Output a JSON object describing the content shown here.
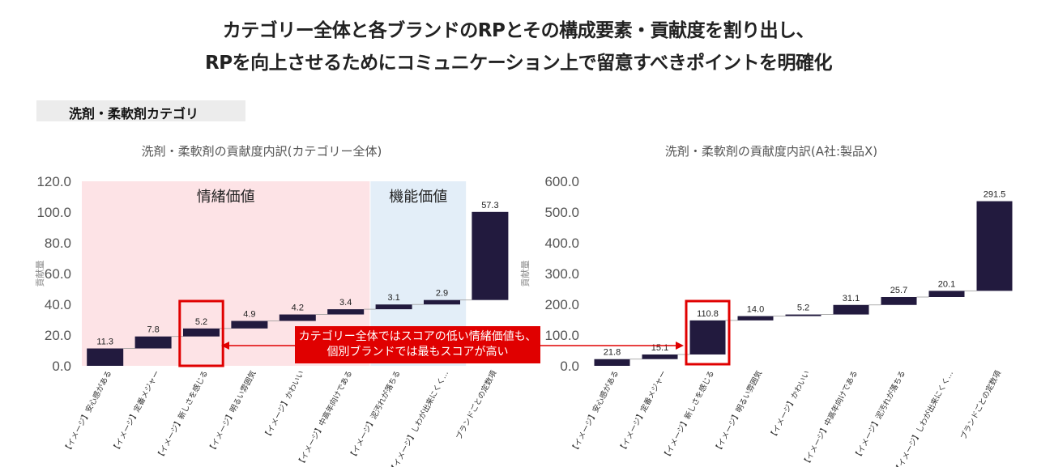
{
  "header": {
    "line1": "カテゴリー全体と各ブランドのRPとその構成要素・貢献度を割り出し、",
    "line2": "RPを向上させるためにコミュニケーション上で留意すべきポイントを明確化"
  },
  "section_label": "洗剤・柔軟剤カテゴリ",
  "callout": {
    "line1": "カテゴリー全体ではスコアの低い情緒価値も、",
    "line2": "個別ブランドでは最もスコアが高い"
  },
  "colors": {
    "bar": "#221a3e",
    "highlight": "#e00000",
    "emotional_bg": "#fde3e6",
    "functional_bg": "#e3eef8"
  },
  "chart_data": [
    {
      "type": "waterfall",
      "title": "洗剤・柔軟剤の貢献度内訳(カテゴリー全体)",
      "ylabel": "貢献量",
      "ylim": [
        0,
        120
      ],
      "yticks": [
        "0.0",
        "20.0",
        "40.0",
        "60.0",
        "80.0",
        "100.0",
        "120.0"
      ],
      "categories": [
        "【イメージ】安心感がある",
        "【イメージ】定番メジャー",
        "【イメージ】新しさを感じる",
        "【イメージ】明るい雰囲気",
        "【イメージ】かわいい",
        "【イメージ】中高年向けである",
        "【イメージ】泥汚れが落ちる",
        "【イメージ】しわが出来にくく…",
        "ブランドごとの定数項"
      ],
      "values": [
        11.3,
        7.8,
        5.2,
        4.9,
        4.2,
        3.4,
        3.1,
        2.9,
        57.3
      ],
      "value_labels": [
        "11.3",
        "7.8",
        "5.2",
        "4.9",
        "4.2",
        "3.4",
        "3.1",
        "2.9",
        "57.3"
      ],
      "regions": [
        {
          "label": "情緒価値",
          "from": 0,
          "to": 5
        },
        {
          "label": "機能価値",
          "from": 6,
          "to": 7
        }
      ],
      "highlight_index": 2
    },
    {
      "type": "waterfall",
      "title": "洗剤・柔軟剤の貢献度内訳(A社:製品X)",
      "ylabel": "貢献量",
      "ylim": [
        0,
        600
      ],
      "yticks": [
        "0.0",
        "100.0",
        "200.0",
        "300.0",
        "400.0",
        "500.0",
        "600.0"
      ],
      "categories": [
        "【イメージ】安心感がある",
        "【イメージ】定番メジャー",
        "【イメージ】新しさを感じる",
        "【イメージ】明るい雰囲気",
        "【イメージ】かわいい",
        "【イメージ】中高年向けである",
        "【イメージ】泥汚れが落ちる",
        "【イメージ】しわが出来にくく…",
        "ブランドごとの定数項"
      ],
      "values": [
        21.8,
        15.1,
        110.8,
        14.0,
        5.2,
        31.1,
        25.7,
        20.1,
        291.5
      ],
      "value_labels": [
        "21.8",
        "15.1",
        "110.8",
        "14.0",
        "5.2",
        "31.1",
        "25.7",
        "20.1",
        "291.5"
      ],
      "highlight_index": 2
    }
  ]
}
